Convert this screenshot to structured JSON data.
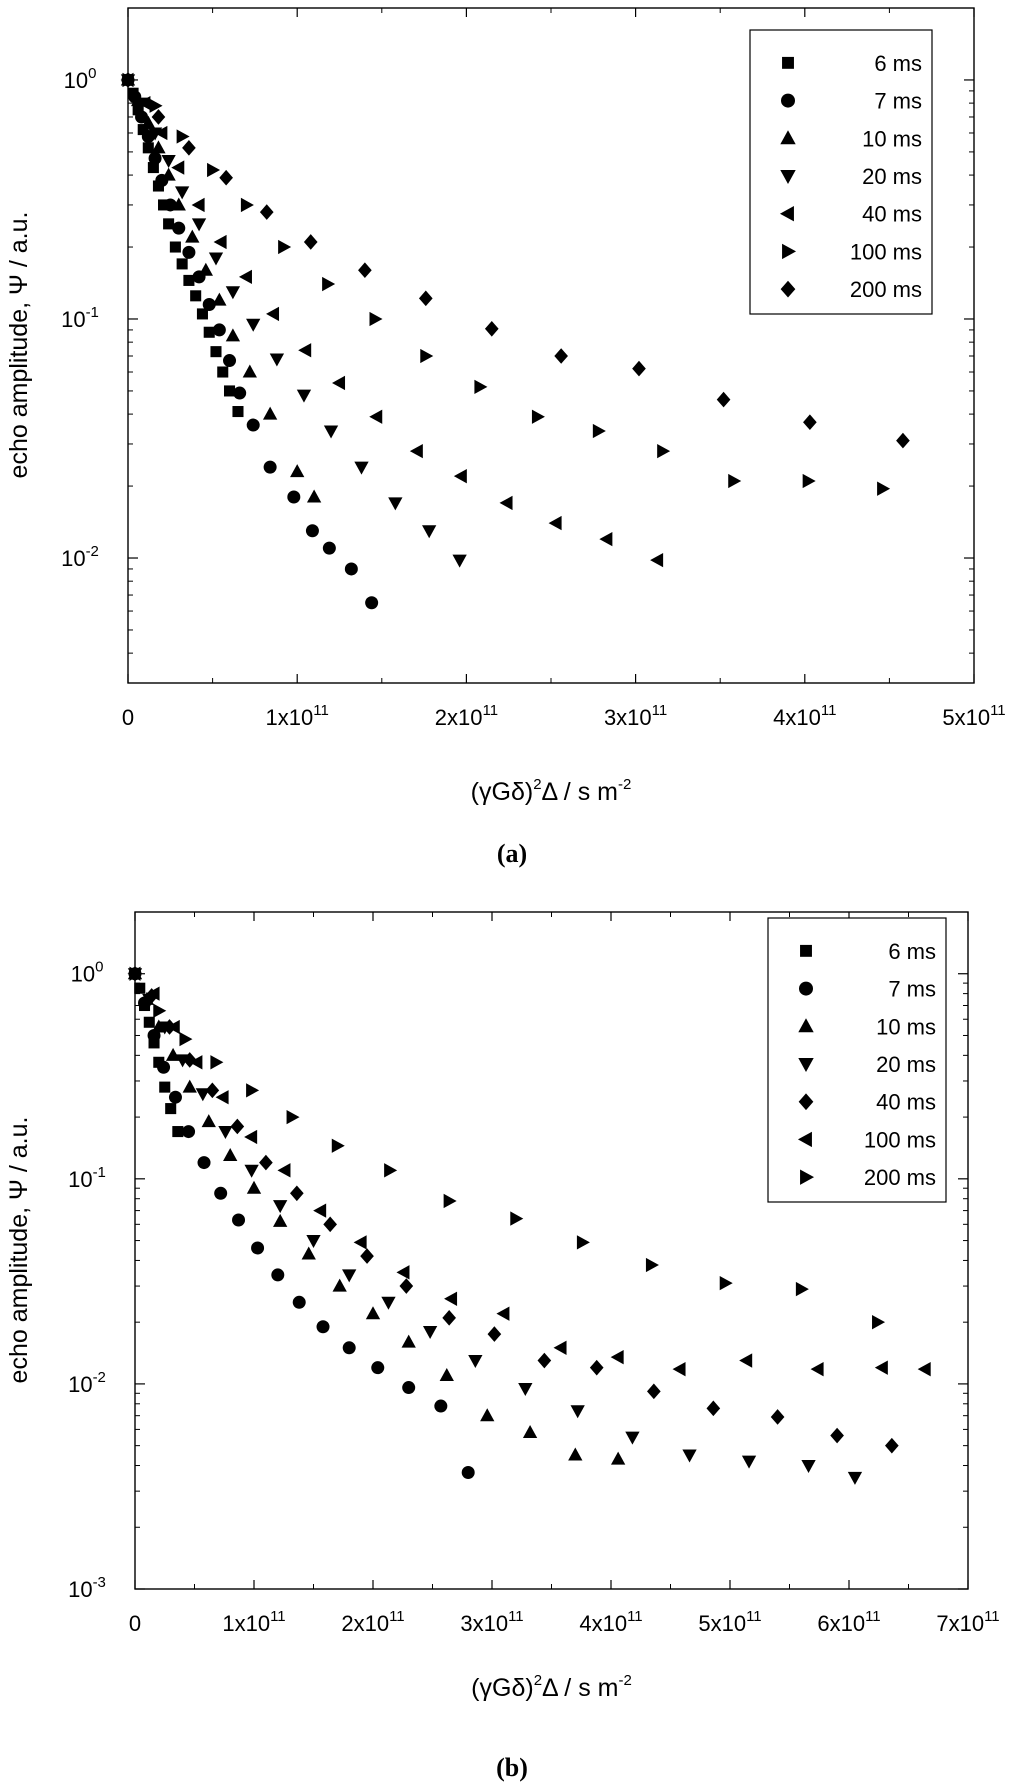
{
  "chart_data": [
    {
      "type": "scatter",
      "panel_label": "(a)",
      "title": "",
      "xlabel": "(γGδ)²Δ / s m⁻²",
      "xlabel_parts": {
        "pre": "(γGδ)",
        "sup1": "2",
        "mid": "Δ  / s m",
        "sup2": "-2"
      },
      "ylabel": "echo amplitude, Ψ / a.u.",
      "xscale": "linear",
      "yscale": "log",
      "xlim": [
        0,
        500000000000.0
      ],
      "ylim": [
        0.003,
        2
      ],
      "grid": false,
      "legend_position": "top-right",
      "x_ticks": [
        {
          "value": 0,
          "label": "0"
        },
        {
          "value": 100000000000.0,
          "mant": "1x10",
          "exp": "11"
        },
        {
          "value": 200000000000.0,
          "mant": "2x10",
          "exp": "11"
        },
        {
          "value": 300000000000.0,
          "mant": "3x10",
          "exp": "11"
        },
        {
          "value": 400000000000.0,
          "mant": "4x10",
          "exp": "11"
        },
        {
          "value": 500000000000.0,
          "mant": "5x10",
          "exp": "11"
        }
      ],
      "y_ticks": [
        {
          "value": 1,
          "mant": "10",
          "exp": "0"
        },
        {
          "value": 0.1,
          "mant": "10",
          "exp": "-1"
        },
        {
          "value": 0.01,
          "mant": "10",
          "exp": "-2"
        }
      ],
      "series": [
        {
          "name": "6 ms",
          "marker": "square",
          "x": [
            0,
            3000000000.0,
            6000000000.0,
            9000000000.0,
            12000000000.0,
            15000000000.0,
            18000000000.0,
            21000000000.0,
            24000000000.0,
            28000000000.0,
            32000000000.0,
            36000000000.0,
            40000000000.0,
            44000000000.0,
            48000000000.0,
            52000000000.0,
            56000000000.0,
            60000000000.0,
            65000000000.0
          ],
          "y": [
            1.0,
            0.88,
            0.75,
            0.62,
            0.52,
            0.43,
            0.36,
            0.3,
            0.25,
            0.2,
            0.17,
            0.145,
            0.125,
            0.105,
            0.088,
            0.073,
            0.06,
            0.05,
            0.041
          ]
        },
        {
          "name": "7 ms",
          "marker": "circle",
          "x": [
            0,
            4000000000.0,
            8000000000.0,
            12000000000.0,
            16000000000.0,
            20000000000.0,
            25000000000.0,
            30000000000.0,
            36000000000.0,
            42000000000.0,
            48000000000.0,
            54000000000.0,
            60000000000.0,
            66000000000.0,
            74000000000.0,
            84000000000.0,
            98000000000.0,
            109000000000.0,
            119000000000.0,
            132000000000.0,
            144000000000.0
          ],
          "y": [
            1.0,
            0.85,
            0.7,
            0.58,
            0.47,
            0.38,
            0.3,
            0.24,
            0.19,
            0.15,
            0.115,
            0.09,
            0.067,
            0.049,
            0.036,
            0.024,
            0.018,
            0.013,
            0.011,
            0.009,
            0.0065
          ]
        },
        {
          "name": "10 ms",
          "marker": "triangle-up",
          "x": [
            0,
            6000000000.0,
            12000000000.0,
            18000000000.0,
            24000000000.0,
            30000000000.0,
            38000000000.0,
            46000000000.0,
            54000000000.0,
            62000000000.0,
            72000000000.0,
            84000000000.0,
            100000000000.0,
            110000000000.0
          ],
          "y": [
            1.0,
            0.82,
            0.66,
            0.52,
            0.4,
            0.3,
            0.22,
            0.16,
            0.12,
            0.085,
            0.06,
            0.04,
            0.023,
            0.018
          ]
        },
        {
          "name": "20 ms",
          "marker": "triangle-down",
          "x": [
            0,
            8000000000.0,
            16000000000.0,
            24000000000.0,
            32000000000.0,
            42000000000.0,
            52000000000.0,
            62000000000.0,
            74000000000.0,
            88000000000.0,
            104000000000.0,
            120000000000.0,
            138000000000.0,
            158000000000.0,
            178000000000.0,
            196000000000.0
          ],
          "y": [
            1.0,
            0.8,
            0.6,
            0.46,
            0.34,
            0.25,
            0.18,
            0.13,
            0.095,
            0.068,
            0.048,
            0.034,
            0.024,
            0.017,
            0.013,
            0.0098
          ]
        },
        {
          "name": "40 ms",
          "marker": "triangle-left",
          "x": [
            0,
            10000000000.0,
            20000000000.0,
            30000000000.0,
            42000000000.0,
            55000000000.0,
            70000000000.0,
            86000000000.0,
            105000000000.0,
            125000000000.0,
            147000000000.0,
            171000000000.0,
            197000000000.0,
            224000000000.0,
            253000000000.0,
            283000000000.0,
            313000000000.0
          ],
          "y": [
            1.0,
            0.8,
            0.6,
            0.43,
            0.3,
            0.21,
            0.15,
            0.105,
            0.074,
            0.054,
            0.039,
            0.028,
            0.022,
            0.017,
            0.014,
            0.012,
            0.0098
          ]
        },
        {
          "name": "100 ms",
          "marker": "triangle-right",
          "x": [
            0,
            16000000000.0,
            32000000000.0,
            50000000000.0,
            70000000000.0,
            92000000000.0,
            118000000000.0,
            146000000000.0,
            176000000000.0,
            208000000000.0,
            242000000000.0,
            278000000000.0,
            316000000000.0,
            358000000000.0,
            402000000000.0,
            446000000000.0
          ],
          "y": [
            1.0,
            0.78,
            0.58,
            0.42,
            0.3,
            0.2,
            0.14,
            0.1,
            0.07,
            0.052,
            0.039,
            0.034,
            0.028,
            0.021,
            0.021,
            0.0195
          ]
        },
        {
          "name": "200 ms",
          "marker": "diamond",
          "x": [
            0,
            18000000000.0,
            36000000000.0,
            58000000000.0,
            82000000000.0,
            108000000000.0,
            140000000000.0,
            176000000000.0,
            215000000000.0,
            256000000000.0,
            302000000000.0,
            352000000000.0,
            403000000000.0,
            458000000000.0
          ],
          "y": [
            1.0,
            0.7,
            0.52,
            0.39,
            0.28,
            0.21,
            0.16,
            0.122,
            0.091,
            0.07,
            0.062,
            0.046,
            0.037,
            0.031
          ]
        }
      ]
    },
    {
      "type": "scatter",
      "panel_label": "(b)",
      "title": "",
      "xlabel": "(γGδ)²Δ / s m⁻²",
      "xlabel_parts": {
        "pre": "(γGδ)",
        "sup1": "2",
        "mid": "Δ  / s m",
        "sup2": "-2"
      },
      "ylabel": "echo amplitude, Ψ / a.u.",
      "xscale": "linear",
      "yscale": "log",
      "xlim": [
        0,
        700000000000.0
      ],
      "ylim": [
        0.001,
        2
      ],
      "grid": false,
      "legend_position": "top-right",
      "x_ticks": [
        {
          "value": 0,
          "label": "0"
        },
        {
          "value": 100000000000.0,
          "mant": "1x10",
          "exp": "11"
        },
        {
          "value": 200000000000.0,
          "mant": "2x10",
          "exp": "11"
        },
        {
          "value": 300000000000.0,
          "mant": "3x10",
          "exp": "11"
        },
        {
          "value": 400000000000.0,
          "mant": "4x10",
          "exp": "11"
        },
        {
          "value": 500000000000.0,
          "mant": "5x10",
          "exp": "11"
        },
        {
          "value": 600000000000.0,
          "mant": "6x10",
          "exp": "11"
        },
        {
          "value": 700000000000.0,
          "mant": "7x10",
          "exp": "11"
        }
      ],
      "y_ticks": [
        {
          "value": 1,
          "mant": "10",
          "exp": "0"
        },
        {
          "value": 0.1,
          "mant": "10",
          "exp": "-1"
        },
        {
          "value": 0.01,
          "mant": "10",
          "exp": "-2"
        },
        {
          "value": 0.001,
          "mant": "10",
          "exp": "-3"
        }
      ],
      "series": [
        {
          "name": "6 ms",
          "marker": "square",
          "x": [
            0,
            4000000000.0,
            8000000000.0,
            12000000000.0,
            16000000000.0,
            20000000000.0,
            25000000000.0,
            30000000000.0,
            36000000000.0
          ],
          "y": [
            1.0,
            0.85,
            0.7,
            0.58,
            0.46,
            0.37,
            0.28,
            0.22,
            0.17
          ]
        },
        {
          "name": "7 ms",
          "marker": "circle",
          "x": [
            0,
            8000000000.0,
            16000000000.0,
            24000000000.0,
            34000000000.0,
            45000000000.0,
            58000000000.0,
            72000000000.0,
            87000000000.0,
            103000000000.0,
            120000000000.0,
            138000000000.0,
            158000000000.0,
            180000000000.0,
            204000000000.0,
            230000000000.0,
            257000000000.0,
            280000000000.0
          ],
          "y": [
            1.0,
            0.72,
            0.5,
            0.35,
            0.25,
            0.17,
            0.12,
            0.085,
            0.063,
            0.046,
            0.034,
            0.025,
            0.019,
            0.015,
            0.012,
            0.0096,
            0.0078,
            0.0037
          ]
        },
        {
          "name": "10 ms",
          "marker": "triangle-up",
          "x": [
            0,
            10000000000.0,
            20000000000.0,
            32000000000.0,
            46000000000.0,
            62000000000.0,
            80000000000.0,
            100000000000.0,
            122000000000.0,
            146000000000.0,
            172000000000.0,
            200000000000.0,
            230000000000.0,
            262000000000.0,
            296000000000.0,
            332000000000.0,
            370000000000.0,
            406000000000.0
          ],
          "y": [
            1.0,
            0.75,
            0.55,
            0.4,
            0.28,
            0.19,
            0.13,
            0.09,
            0.062,
            0.043,
            0.03,
            0.022,
            0.016,
            0.011,
            0.007,
            0.0058,
            0.0045,
            0.0043
          ]
        },
        {
          "name": "20 ms",
          "marker": "triangle-down",
          "x": [
            0,
            12000000000.0,
            25000000000.0,
            40000000000.0,
            57000000000.0,
            76000000000.0,
            98000000000.0,
            122000000000.0,
            150000000000.0,
            180000000000.0,
            213000000000.0,
            248000000000.0,
            286000000000.0,
            328000000000.0,
            372000000000.0,
            418000000000.0,
            466000000000.0,
            516000000000.0,
            566000000000.0,
            605000000000.0
          ],
          "y": [
            1.0,
            0.75,
            0.55,
            0.38,
            0.26,
            0.17,
            0.11,
            0.074,
            0.05,
            0.034,
            0.025,
            0.018,
            0.013,
            0.0095,
            0.0074,
            0.0055,
            0.0045,
            0.0042,
            0.004,
            0.0035
          ]
        },
        {
          "name": "40 ms",
          "marker": "diamond",
          "x": [
            0,
            14000000000.0,
            29000000000.0,
            46000000000.0,
            65000000000.0,
            86000000000.0,
            110000000000.0,
            136000000000.0,
            164000000000.0,
            195000000000.0,
            228000000000.0,
            264000000000.0,
            302000000000.0,
            344000000000.0,
            388000000000.0,
            436000000000.0,
            486000000000.0,
            540000000000.0,
            590000000000.0,
            636000000000.0
          ],
          "y": [
            1.0,
            0.78,
            0.55,
            0.38,
            0.27,
            0.18,
            0.12,
            0.085,
            0.06,
            0.042,
            0.03,
            0.021,
            0.0175,
            0.013,
            0.012,
            0.0092,
            0.0076,
            0.0069,
            0.0056,
            0.005
          ]
        },
        {
          "name": "100 ms",
          "marker": "triangle-left",
          "x": [
            0,
            16000000000.0,
            33000000000.0,
            52000000000.0,
            74000000000.0,
            98000000000.0,
            126000000000.0,
            156000000000.0,
            190000000000.0,
            226000000000.0,
            266000000000.0,
            310000000000.0,
            358000000000.0,
            406000000000.0,
            458000000000.0,
            514000000000.0,
            574000000000.0,
            628000000000.0,
            664000000000.0
          ],
          "y": [
            1.0,
            0.8,
            0.55,
            0.37,
            0.25,
            0.16,
            0.11,
            0.07,
            0.049,
            0.035,
            0.026,
            0.022,
            0.015,
            0.0135,
            0.0118,
            0.013,
            0.0118,
            0.012,
            0.0118
          ]
        },
        {
          "name": "200 ms",
          "marker": "triangle-right",
          "x": [
            0,
            20000000000.0,
            42000000000.0,
            68000000000.0,
            98000000000.0,
            132000000000.0,
            170000000000.0,
            214000000000.0,
            264000000000.0,
            320000000000.0,
            376000000000.0,
            434000000000.0,
            496000000000.0,
            560000000000.0,
            624000000000.0
          ],
          "y": [
            1.0,
            0.66,
            0.48,
            0.37,
            0.27,
            0.2,
            0.145,
            0.11,
            0.078,
            0.064,
            0.049,
            0.038,
            0.031,
            0.029,
            0.02
          ]
        }
      ]
    }
  ]
}
